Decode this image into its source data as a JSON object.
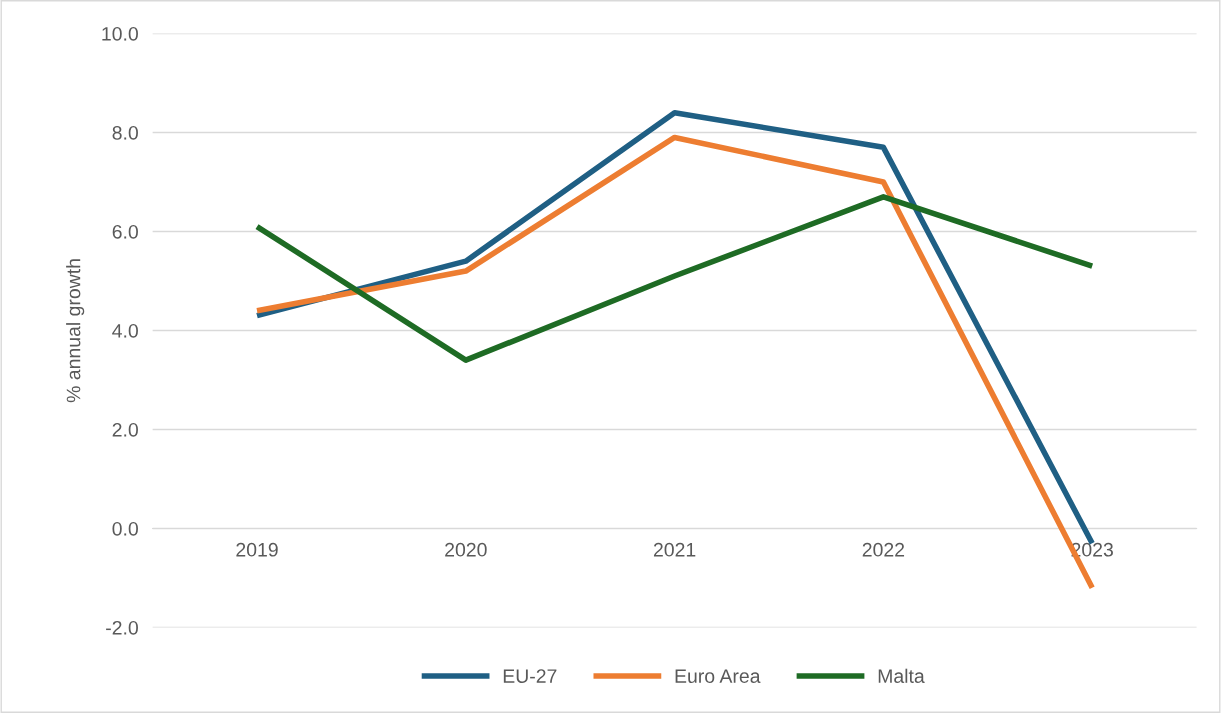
{
  "chart_data": {
    "type": "line",
    "ylabel": "% annual growth",
    "categories": [
      "2019",
      "2020",
      "2021",
      "2022",
      "2023"
    ],
    "series": [
      {
        "name": "EU-27",
        "color": "#1f5f84",
        "values": [
          4.3,
          5.4,
          8.4,
          7.7,
          -0.3
        ]
      },
      {
        "name": "Euro Area",
        "color": "#ed7d31",
        "values": [
          4.4,
          5.2,
          7.9,
          7.0,
          -1.2
        ]
      },
      {
        "name": "Malta",
        "color": "#1e6b24",
        "values": [
          6.1,
          3.4,
          5.1,
          6.7,
          5.3
        ]
      }
    ],
    "ylim": [
      -2,
      10
    ],
    "yticks": [
      {
        "value": -2,
        "label": "-2.0"
      },
      {
        "value": 0,
        "label": "0.0"
      },
      {
        "value": 2,
        "label": "2.0"
      },
      {
        "value": 4,
        "label": "4.0"
      },
      {
        "value": 6,
        "label": "6.0"
      },
      {
        "value": 8,
        "label": "8.0"
      },
      {
        "value": 10,
        "label": "10.0"
      }
    ],
    "grid": "y",
    "legend": "bottom",
    "marker": "none",
    "line_style": "solid"
  }
}
